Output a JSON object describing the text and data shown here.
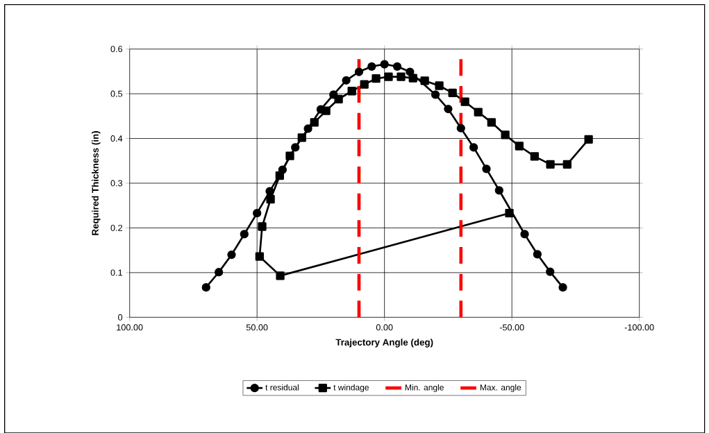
{
  "chart_data": {
    "type": "line",
    "xlabel": "Trajectory Angle  (deg)",
    "ylabel": "Required Thickness  (in)",
    "xlim": [
      100,
      -100
    ],
    "xticks": [
      {
        "value": 100,
        "label": "100.00"
      },
      {
        "value": 50,
        "label": "50.00"
      },
      {
        "value": 0,
        "label": "0.00"
      },
      {
        "value": -50,
        "label": "-50.00"
      },
      {
        "value": -100,
        "label": "-100.00"
      }
    ],
    "ylim": [
      0,
      0.6
    ],
    "yticks": [
      0,
      0.1,
      0.2,
      0.3,
      0.4,
      0.5,
      0.6
    ],
    "grid": true,
    "legend": "bottom",
    "line_style": "solid",
    "series": [
      {
        "name": "t residual",
        "color": "#000000",
        "marker": "circle",
        "x": [
          70,
          65,
          60,
          55,
          50,
          45,
          40,
          35,
          30,
          25,
          20,
          15,
          10,
          5,
          0,
          -5,
          -10,
          -15,
          -20,
          -25,
          -30,
          -35,
          -40,
          -45,
          -50,
          -55,
          -60,
          -65,
          -70
        ],
        "values": [
          0.067,
          0.101,
          0.14,
          0.186,
          0.233,
          0.282,
          0.33,
          0.38,
          0.422,
          0.465,
          0.498,
          0.53,
          0.549,
          0.561,
          0.566,
          0.561,
          0.549,
          null,
          0.498,
          0.466,
          0.423,
          0.38,
          0.332,
          0.284,
          null,
          0.186,
          0.141,
          0.102,
          0.067
        ]
      },
      {
        "name": "t windage",
        "color": "#000000",
        "marker": "square",
        "x": [
          -49.0,
          40.9,
          49.0,
          48.0,
          44.7,
          41.1,
          37.1,
          32.4,
          27.5,
          22.9,
          18.0,
          12.8,
          7.9,
          3.3,
          -1.6,
          -6.5,
          -11.2,
          -15.8,
          -21.5,
          -26.7,
          -31.6,
          -36.8,
          -42.0,
          -47.4,
          -52.9,
          -58.9,
          -65.1,
          -71.7,
          -80.1
        ],
        "values": [
          0.233,
          0.093,
          0.136,
          0.203,
          0.264,
          0.317,
          0.361,
          0.402,
          0.436,
          0.462,
          0.488,
          0.506,
          0.521,
          0.534,
          0.538,
          0.538,
          0.535,
          0.529,
          0.518,
          0.502,
          0.482,
          0.459,
          0.436,
          0.408,
          0.383,
          0.36,
          0.342,
          0.342,
          0.398
        ]
      }
    ],
    "ref_lines": [
      {
        "axis": "x",
        "value": 10,
        "label": "Min. angle",
        "color": "#ff0000",
        "line_style": "dashed"
      },
      {
        "axis": "x",
        "value": -30,
        "label": "Max. angle",
        "color": "#ff0000",
        "line_style": "dashed"
      }
    ]
  }
}
